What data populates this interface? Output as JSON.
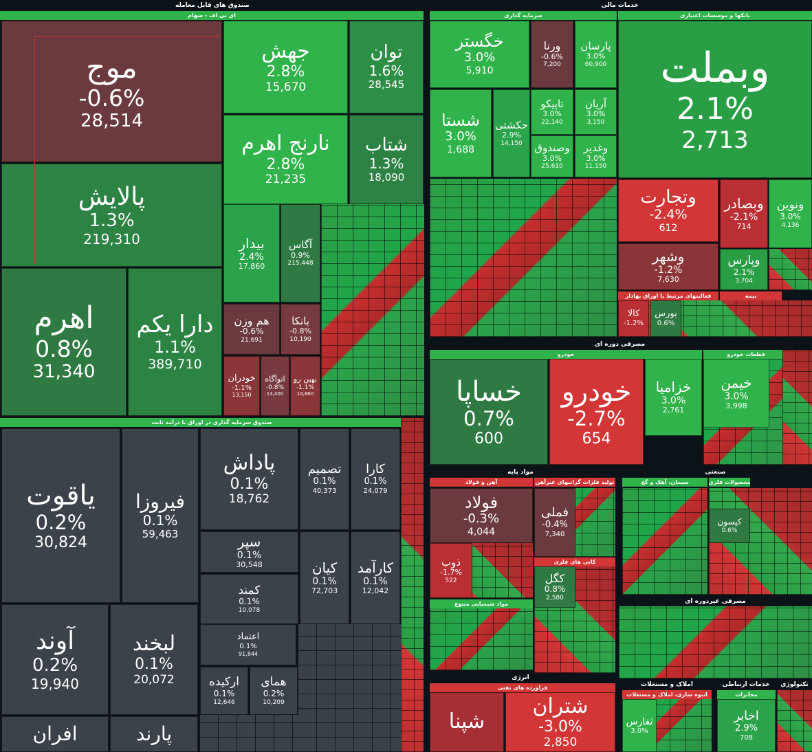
{
  "chart_data": {
    "type": "treemap",
    "title": "",
    "palette": {
      "up_strong": "#2fb34a",
      "up_mid": "#2a9e45",
      "up_weak": "#2d8344",
      "down_weak": "#6e3a3e",
      "down_mid": "#a02e34",
      "down_strong": "#d23636",
      "flat": "#3b4249"
    },
    "sectors": [
      {
        "name": "صندوق های قابل معامله",
        "industries": [
          {
            "name": "ای تی اف - سهام"
          },
          {
            "name": "صندوق سرمایه گذاری در اوراق با درآمد ثابت"
          }
        ]
      },
      {
        "name": "خدمات مالی",
        "industries": [
          {
            "name": "سرمایه گذاری"
          },
          {
            "name": "بانکها و موسسات اعتباری"
          },
          {
            "name": "فعالیتهای مرتبط با اوراق بهادار"
          },
          {
            "name": "بیمه"
          }
        ]
      },
      {
        "name": "مصرفی دوره ای",
        "industries": [
          {
            "name": "خودرو"
          },
          {
            "name": "قطعات خودرو"
          }
        ]
      },
      {
        "name": "مواد پایه",
        "industries": [
          {
            "name": "آهن و فولاد"
          },
          {
            "name": "تولید فلزات گرانبهای غیرآهن"
          },
          {
            "name": "کانی های فلزی"
          },
          {
            "name": "مواد شیمیایی متنوع"
          }
        ]
      },
      {
        "name": "صنعتی",
        "industries": [
          {
            "name": "سیمان، آهک و گچ"
          },
          {
            "name": "محصولات فلزی"
          }
        ]
      },
      {
        "name": "مصرفی غیردوره ای"
      },
      {
        "name": "انرژی",
        "industries": [
          {
            "name": "فراورده های نفتی"
          }
        ]
      },
      {
        "name": "املاک و مستغلات",
        "industries": [
          {
            "name": "انبوه سازی، املاک و مستغلات"
          }
        ]
      },
      {
        "name": "خدمات ارتباطی",
        "industries": [
          {
            "name": "مخابرات"
          }
        ]
      },
      {
        "name": "تکنولوژی"
      }
    ],
    "tiles": [
      {
        "name": "موج",
        "change": "-0.6%",
        "value": "28,514",
        "color": "#6b3a3e"
      },
      {
        "name": "جهش",
        "change": "2.8%",
        "value": "15,670",
        "color": "#2fb34a"
      },
      {
        "name": "توان",
        "change": "1.6%",
        "value": "28,545",
        "color": "#2d8f46"
      },
      {
        "name": "نارنج اهرم",
        "change": "2.8%",
        "value": "21,235",
        "color": "#2fb34a"
      },
      {
        "name": "شتاب",
        "change": "1.3%",
        "value": "18,090",
        "color": "#2d8344"
      },
      {
        "name": "پالایش",
        "change": "1.3%",
        "value": "219,310",
        "color": "#2d8344"
      },
      {
        "name": "اهرم",
        "change": "0.8%",
        "value": "31,340",
        "color": "#2f7a42"
      },
      {
        "name": "دارا یکم",
        "change": "1.1%",
        "value": "389,710",
        "color": "#2d8344"
      },
      {
        "name": "بیدار",
        "change": "2.4%",
        "value": "17,860",
        "color": "#2aa34a"
      },
      {
        "name": "آگاس",
        "change": "0.9%",
        "value": "215,448",
        "color": "#2f7a42"
      },
      {
        "name": "هم وزن",
        "change": "-0.6%",
        "value": "21,691",
        "color": "#6b3a3e"
      },
      {
        "name": "بانکا",
        "change": "-0.8%",
        "value": "10,190",
        "color": "#763a3f"
      },
      {
        "name": "خودران",
        "change": "-1.1%",
        "value": "13,150",
        "color": "#8a3538"
      },
      {
        "name": "اتوآگاه",
        "change": "-0.8%",
        "value": "13,400",
        "color": "#763a3f"
      },
      {
        "name": "بهین رو",
        "change": "-1.1%",
        "value": "14,860",
        "color": "#8a3538"
      },
      {
        "name": "یاقوت",
        "change": "0.2%",
        "value": "30,824",
        "color": "#3b4249"
      },
      {
        "name": "فیروزا",
        "change": "0.1%",
        "value": "59,463",
        "color": "#3b4249"
      },
      {
        "name": "پاداش",
        "change": "0.1%",
        "value": "18,762",
        "color": "#3b4249"
      },
      {
        "name": "تصمیم",
        "change": "0.1%",
        "value": "40,373",
        "color": "#3b4249"
      },
      {
        "name": "کارا",
        "change": "0.1%",
        "value": "24,079",
        "color": "#3b4249"
      },
      {
        "name": "سپر",
        "change": "0.1%",
        "value": "30,548",
        "color": "#3b4249"
      },
      {
        "name": "کمند",
        "change": "0.1%",
        "value": "10,078",
        "color": "#3b4249"
      },
      {
        "name": "کیان",
        "change": "0.1%",
        "value": "72,703",
        "color": "#3b4249"
      },
      {
        "name": "کارآمد",
        "change": "0.1%",
        "value": "12,042",
        "color": "#3b4249"
      },
      {
        "name": "اعتماد",
        "change": "0.1%",
        "value": "91,844",
        "color": "#3b4249"
      },
      {
        "name": "آوند",
        "change": "0.2%",
        "value": "19,940",
        "color": "#3b4249"
      },
      {
        "name": "لبخند",
        "change": "0.1%",
        "value": "20,072",
        "color": "#3b4249"
      },
      {
        "name": "ارکیده",
        "change": "0.1%",
        "value": "12,646",
        "color": "#3b4249"
      },
      {
        "name": "همای",
        "change": "0.2%",
        "value": "10,209",
        "color": "#3b4249"
      },
      {
        "name": "افران",
        "change": "",
        "value": "",
        "color": "#3b4249"
      },
      {
        "name": "پارند",
        "change": "",
        "value": "",
        "color": "#3b4249"
      },
      {
        "name": "خگستر",
        "change": "3.0%",
        "value": "5,910",
        "color": "#2fb34a"
      },
      {
        "name": "ورنا",
        "change": "-0.6%",
        "value": "7,200",
        "color": "#6b3a3e"
      },
      {
        "name": "پارسان",
        "change": "3.0%",
        "value": "60,900",
        "color": "#2fb34a"
      },
      {
        "name": "شستا",
        "change": "3.0%",
        "value": "1,688",
        "color": "#2fb34a"
      },
      {
        "name": "حکشتی",
        "change": "2.9%",
        "value": "14,150",
        "color": "#2aa34a"
      },
      {
        "name": "تاپیکو",
        "change": "3.0%",
        "value": "22,140",
        "color": "#2fb34a"
      },
      {
        "name": "آریان",
        "change": "3.0%",
        "value": "3,150",
        "color": "#2fb34a"
      },
      {
        "name": "وصندوق",
        "change": "3.0%",
        "value": "25,610",
        "color": "#2fb34a"
      },
      {
        "name": "وغدیر",
        "change": "3.0%",
        "value": "11,150",
        "color": "#2fb34a"
      },
      {
        "name": "وبملت",
        "change": "2.1%",
        "value": "2,713",
        "color": "#2a9e45"
      },
      {
        "name": "وتجارت",
        "change": "-2.4%",
        "value": "612",
        "color": "#d23636"
      },
      {
        "name": "وبصادر",
        "change": "-2.1%",
        "value": "714",
        "color": "#b92f34"
      },
      {
        "name": "ونوین",
        "change": "3.0%",
        "value": "4,136",
        "color": "#2fb34a"
      },
      {
        "name": "وشهر",
        "change": "-1.2%",
        "value": "7,630",
        "color": "#8a3538"
      },
      {
        "name": "وپارس",
        "change": "2.1%",
        "value": "3,704",
        "color": "#2a9e45"
      },
      {
        "name": "کالا",
        "change": "-1.2%",
        "value": "",
        "color": "#b92f34"
      },
      {
        "name": "بورس",
        "change": "0.6%",
        "value": "",
        "color": "#2f7a42"
      },
      {
        "name": "خساپا",
        "change": "0.7%",
        "value": "600",
        "color": "#2f7a42"
      },
      {
        "name": "خودرو",
        "change": "-2.7%",
        "value": "654",
        "color": "#d23636"
      },
      {
        "name": "خزامیا",
        "change": "3.0%",
        "value": "2,761",
        "color": "#2fb34a"
      },
      {
        "name": "خیمن",
        "change": "3.0%",
        "value": "3,998",
        "color": "#2fb34a"
      },
      {
        "name": "فولاد",
        "change": "-0.3%",
        "value": "4,044",
        "color": "#6b3a3e"
      },
      {
        "name": "فملی",
        "change": "-0.4%",
        "value": "7,340",
        "color": "#6b3a3e"
      },
      {
        "name": "ذوب",
        "change": "-1.7%",
        "value": "522",
        "color": "#b92f34"
      },
      {
        "name": "کگل",
        "change": "0.8%",
        "value": "2,580",
        "color": "#2f7a42"
      },
      {
        "name": "شپنا",
        "change": "",
        "value": "",
        "color": "#a52f34"
      },
      {
        "name": "شتران",
        "change": "-3.0%",
        "value": "2,850",
        "color": "#d23636"
      },
      {
        "name": "اخابر",
        "change": "2.9%",
        "value": "708",
        "color": "#2aa34a"
      },
      {
        "name": "ثفارس",
        "change": "3.0%",
        "value": "",
        "color": "#2fb34a"
      },
      {
        "name": "کیسون",
        "change": "0.6%",
        "value": "",
        "color": "#2f7a42"
      }
    ]
  }
}
